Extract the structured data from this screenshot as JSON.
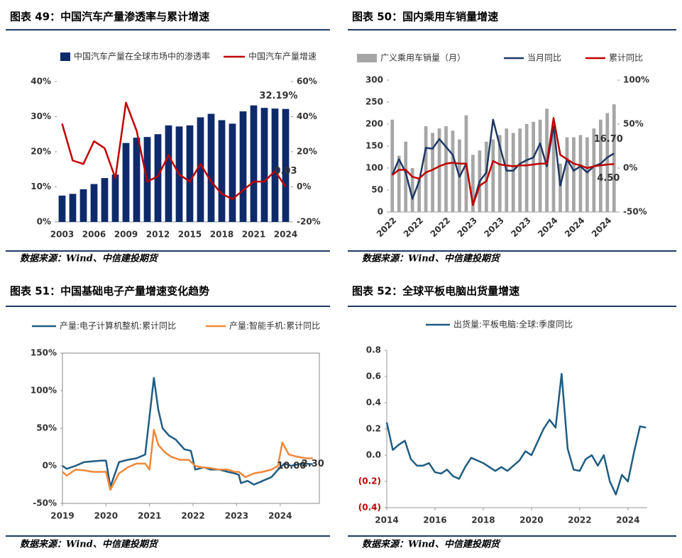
{
  "chart_data": [
    {
      "type": "combo",
      "title": "图表 49：中国汽车产量渗透率与累计增速",
      "source": "数据来源：Wind、中信建投期货",
      "categories": [
        "2003",
        null,
        null,
        "2006",
        null,
        null,
        "2009",
        null,
        null,
        "2012",
        null,
        null,
        "2015",
        null,
        null,
        "2018",
        null,
        null,
        "2021",
        null,
        null,
        "2024"
      ],
      "series": [
        {
          "name": "中国汽车产量在全球市场中的渗透率",
          "type": "bar",
          "color": "#0e2a6b",
          "values": [
            7.5,
            8,
            9.3,
            10.8,
            12.5,
            13.5,
            22.5,
            24,
            24.2,
            25,
            27.5,
            27.2,
            27.5,
            29.8,
            30.8,
            29,
            28,
            31.5,
            33.2,
            32.5,
            32.3,
            32.19
          ],
          "value_labels": [
            null,
            null,
            null,
            null,
            null,
            null,
            null,
            null,
            null,
            null,
            null,
            null,
            null,
            null,
            null,
            null,
            null,
            null,
            null,
            null,
            null,
            "32.19%"
          ]
        },
        {
          "name": "中国汽车产量增速",
          "type": "line",
          "axis": "y2",
          "color": "#c00000",
          "values": [
            36,
            15,
            13,
            26,
            22,
            5,
            48,
            32,
            3,
            6,
            18,
            7,
            3,
            13,
            3,
            -4,
            -7,
            -2,
            3,
            3,
            9,
            0.03
          ],
          "value_labels": [
            null,
            null,
            null,
            null,
            null,
            null,
            null,
            null,
            null,
            null,
            null,
            null,
            null,
            null,
            null,
            null,
            null,
            null,
            null,
            null,
            null,
            "0.03"
          ]
        }
      ],
      "ylim": [
        0,
        40
      ],
      "yticks": [
        {
          "value": 0,
          "label": "0%"
        },
        {
          "value": 10,
          "label": "10%"
        },
        {
          "value": 20,
          "label": "20%"
        },
        {
          "value": 30,
          "label": "30%"
        },
        {
          "value": 40,
          "label": "40%"
        }
      ],
      "y2lim": [
        -20,
        60
      ],
      "y2ticks": [
        {
          "value": -20,
          "label": "-20%"
        },
        {
          "value": 0,
          "label": "0%"
        },
        {
          "value": 20,
          "label": "20%"
        },
        {
          "value": 40,
          "label": "40%"
        },
        {
          "value": 60,
          "label": "60%"
        }
      ]
    },
    {
      "type": "combo",
      "title": "图表 50：国内乘用车销量增速",
      "source": "数据来源：Wind、中信建投期货",
      "categories": [
        "2022",
        null,
        null,
        null,
        "2022",
        null,
        null,
        null,
        "2022",
        null,
        null,
        null,
        "2023",
        null,
        null,
        null,
        "2023",
        null,
        null,
        null,
        "2023",
        null,
        null,
        null,
        "2024",
        null,
        null,
        null,
        "2024",
        null,
        null,
        null,
        "2024",
        null
      ],
      "series": [
        {
          "name": "广义乘用车销量（月）",
          "type": "bar",
          "color": "#a6a6a6",
          "values": [
            210,
            128,
            160,
            100,
            75,
            195,
            180,
            190,
            195,
            185,
            165,
            220,
            130,
            140,
            160,
            165,
            175,
            190,
            180,
            190,
            200,
            205,
            210,
            235,
            195,
            110,
            170,
            170,
            175,
            170,
            190,
            210,
            225,
            245
          ]
        },
        {
          "name": "当月同比",
          "type": "line",
          "axis": "y2",
          "color": "#1f3864",
          "values": [
            -8,
            10,
            -5,
            -35,
            -15,
            23,
            22,
            33,
            24,
            15,
            -10,
            5,
            -42,
            -15,
            -5,
            55,
            25,
            -3,
            -3,
            5,
            9,
            12,
            28,
            2,
            48,
            -20,
            10,
            -3,
            2,
            -5,
            2,
            5,
            12,
            16.7
          ],
          "value_labels": [
            null,
            null,
            null,
            null,
            null,
            null,
            null,
            null,
            null,
            null,
            null,
            null,
            null,
            null,
            null,
            null,
            null,
            null,
            null,
            null,
            null,
            null,
            null,
            null,
            null,
            null,
            null,
            null,
            null,
            null,
            null,
            null,
            null,
            "16.70"
          ]
        },
        {
          "name": "累计同比",
          "type": "line",
          "axis": "y2",
          "color": "#c00000",
          "values": [
            -8,
            -2,
            -2,
            -10,
            -12,
            -5,
            -2,
            2,
            5,
            6,
            5,
            5,
            -42,
            -20,
            -15,
            8,
            4,
            3,
            2,
            3,
            3,
            4,
            5,
            5,
            57,
            15,
            10,
            5,
            3,
            0,
            2,
            3,
            4,
            4.5
          ],
          "value_labels": [
            null,
            null,
            null,
            null,
            null,
            null,
            null,
            null,
            null,
            null,
            null,
            null,
            null,
            null,
            null,
            null,
            null,
            null,
            null,
            null,
            null,
            null,
            null,
            null,
            null,
            null,
            null,
            null,
            null,
            null,
            null,
            null,
            null,
            "4.50"
          ]
        }
      ],
      "ylim": [
        0,
        300
      ],
      "yticks": [
        0,
        50,
        100,
        150,
        200,
        250,
        300
      ],
      "y2lim": [
        -50,
        100
      ],
      "y2ticks": [
        {
          "value": -50,
          "label": "-50%"
        },
        {
          "value": 0,
          "label": "0%"
        },
        {
          "value": 50,
          "label": "50%"
        },
        {
          "value": 100,
          "label": "100%"
        }
      ]
    },
    {
      "type": "line",
      "title": "图表 51：中国基础电子产量增速变化趋势",
      "source": "数据来源：Wind、中信建投期货",
      "series": [
        {
          "name": "产量:电子计算机整机:累计同比",
          "color": "#1f5c82",
          "x": [
            2019.0,
            2019.1,
            2019.3,
            2019.5,
            2019.7,
            2019.9,
            2020.0,
            2020.1,
            2020.3,
            2020.5,
            2020.7,
            2020.9,
            2021.1,
            2021.2,
            2021.3,
            2021.45,
            2021.6,
            2021.8,
            2021.95,
            2022.05,
            2022.25,
            2022.4,
            2022.6,
            2022.8,
            2022.95,
            2023.05,
            2023.1,
            2023.25,
            2023.4,
            2023.6,
            2023.8,
            2023.95,
            2024.1,
            2024.25,
            2024.5,
            2024.75
          ],
          "values": [
            0,
            -4,
            0,
            5,
            6,
            7,
            7,
            -28,
            5,
            8,
            10,
            15,
            117,
            75,
            50,
            40,
            35,
            22,
            20,
            -5,
            -2,
            -5,
            -5,
            -8,
            -10,
            -12,
            -23,
            -20,
            -25,
            -20,
            -15,
            -5,
            3,
            0,
            3,
            2.3
          ],
          "value_labels": [
            null,
            null,
            null,
            null,
            null,
            null,
            null,
            null,
            null,
            null,
            null,
            null,
            null,
            null,
            null,
            null,
            null,
            null,
            null,
            null,
            null,
            null,
            null,
            null,
            null,
            null,
            null,
            null,
            null,
            null,
            null,
            null,
            null,
            null,
            null,
            "2.30"
          ]
        },
        {
          "name": "产量:智能手机:累计同比",
          "color": "#f0883a",
          "x": [
            2019.0,
            2019.1,
            2019.3,
            2019.5,
            2019.7,
            2019.9,
            2020.0,
            2020.1,
            2020.3,
            2020.5,
            2020.7,
            2020.9,
            2021.0,
            2021.1,
            2021.2,
            2021.35,
            2021.5,
            2021.7,
            2021.9,
            2022.05,
            2022.2,
            2022.4,
            2022.6,
            2022.8,
            2022.95,
            2023.05,
            2023.2,
            2023.4,
            2023.6,
            2023.8,
            2023.95,
            2024.05,
            2024.2,
            2024.4,
            2024.6,
            2024.75
          ],
          "values": [
            -8,
            -13,
            -5,
            -6,
            -8,
            -8,
            -8,
            -32,
            -10,
            -2,
            3,
            3,
            -5,
            48,
            28,
            18,
            12,
            8,
            8,
            0,
            -2,
            -3,
            -5,
            -5,
            -8,
            -8,
            -15,
            -10,
            -8,
            -5,
            0,
            31,
            15,
            12,
            10,
            10
          ],
          "value_labels": [
            null,
            null,
            null,
            null,
            null,
            null,
            null,
            null,
            null,
            null,
            null,
            null,
            null,
            null,
            null,
            null,
            null,
            null,
            null,
            null,
            null,
            null,
            null,
            null,
            null,
            null,
            null,
            null,
            null,
            null,
            null,
            null,
            null,
            null,
            null,
            "10.00"
          ]
        }
      ],
      "xlim": [
        2019,
        2024.9
      ],
      "xticks": [
        2019,
        2020,
        2021,
        2022,
        2023,
        2024
      ],
      "ylim": [
        -50,
        150
      ],
      "yticks": [
        {
          "value": -50,
          "label": "-50%"
        },
        {
          "value": 0,
          "label": "0%"
        },
        {
          "value": 50,
          "label": "50%"
        },
        {
          "value": 100,
          "label": "100%"
        },
        {
          "value": 150,
          "label": "150%"
        }
      ]
    },
    {
      "type": "line",
      "title": "图表 52：全球平板电脑出货量增速",
      "source": "数据来源：Wind、中信建投期货",
      "series": [
        {
          "name": "出货量:平板电脑:全球:季度同比",
          "color": "#1f5c82",
          "x": [
            2014.0,
            2014.25,
            2014.5,
            2014.75,
            2015.0,
            2015.25,
            2015.5,
            2015.75,
            2016.0,
            2016.25,
            2016.5,
            2016.75,
            2017.0,
            2017.25,
            2017.5,
            2017.75,
            2018.0,
            2018.25,
            2018.5,
            2018.75,
            2019.0,
            2019.25,
            2019.5,
            2019.75,
            2020.0,
            2020.25,
            2020.5,
            2020.75,
            2021.0,
            2021.25,
            2021.5,
            2021.75,
            2022.0,
            2022.25,
            2022.5,
            2022.75,
            2023.0,
            2023.25,
            2023.5,
            2023.75,
            2024.0,
            2024.25,
            2024.5,
            2024.75
          ],
          "values": [
            0.25,
            0.04,
            0.08,
            0.11,
            -0.03,
            -0.08,
            -0.08,
            -0.06,
            -0.13,
            -0.14,
            -0.11,
            -0.16,
            -0.18,
            -0.09,
            -0.02,
            -0.04,
            -0.06,
            -0.09,
            -0.12,
            -0.09,
            -0.12,
            -0.08,
            -0.04,
            0.03,
            0,
            0.1,
            0.2,
            0.27,
            0.21,
            0.62,
            0.05,
            -0.11,
            -0.12,
            -0.03,
            0,
            -0.08,
            0,
            -0.2,
            -0.3,
            -0.15,
            -0.2,
            0.02,
            0.22,
            0.21
          ]
        }
      ],
      "xlim": [
        2014,
        2024.8
      ],
      "xticks": [
        2014,
        2016,
        2018,
        2020,
        2022,
        2024
      ],
      "ylim": [
        -0.4,
        0.8
      ],
      "yticks": [
        {
          "value": -0.4,
          "label": "(0.4)"
        },
        {
          "value": -0.2,
          "label": "(0.2)"
        },
        {
          "value": 0,
          "label": "0.0"
        },
        0.2,
        0.4,
        0.6,
        0.8
      ],
      "negative_tick_color": "#c00000"
    }
  ]
}
